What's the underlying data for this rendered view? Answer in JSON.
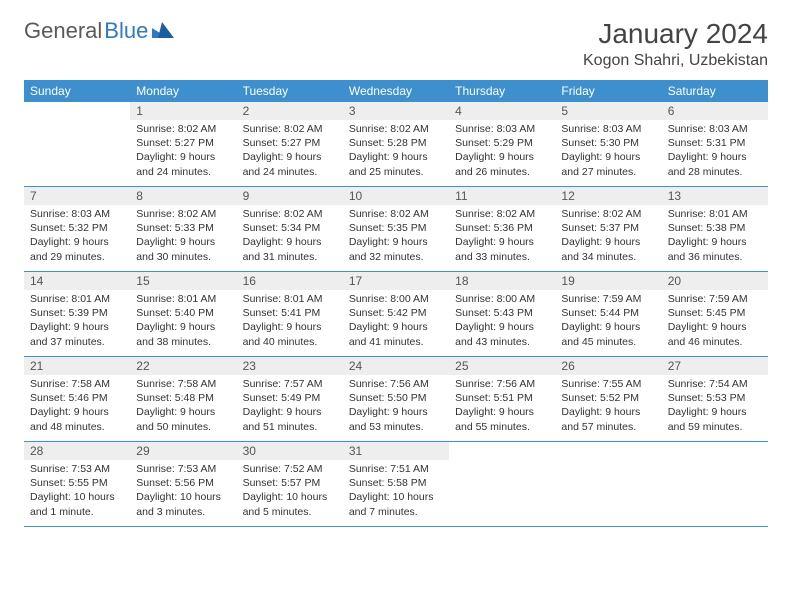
{
  "logo": {
    "text1": "General",
    "text2": "Blue"
  },
  "title": "January 2024",
  "location": "Kogon Shahri, Uzbekistan",
  "header_bg": "#3e8fcd",
  "day_names": [
    "Sunday",
    "Monday",
    "Tuesday",
    "Wednesday",
    "Thursday",
    "Friday",
    "Saturday"
  ],
  "weeks": [
    [
      {
        "n": "",
        "sr": "",
        "ss": "",
        "dl": ""
      },
      {
        "n": "1",
        "sr": "Sunrise: 8:02 AM",
        "ss": "Sunset: 5:27 PM",
        "dl": "Daylight: 9 hours and 24 minutes."
      },
      {
        "n": "2",
        "sr": "Sunrise: 8:02 AM",
        "ss": "Sunset: 5:27 PM",
        "dl": "Daylight: 9 hours and 24 minutes."
      },
      {
        "n": "3",
        "sr": "Sunrise: 8:02 AM",
        "ss": "Sunset: 5:28 PM",
        "dl": "Daylight: 9 hours and 25 minutes."
      },
      {
        "n": "4",
        "sr": "Sunrise: 8:03 AM",
        "ss": "Sunset: 5:29 PM",
        "dl": "Daylight: 9 hours and 26 minutes."
      },
      {
        "n": "5",
        "sr": "Sunrise: 8:03 AM",
        "ss": "Sunset: 5:30 PM",
        "dl": "Daylight: 9 hours and 27 minutes."
      },
      {
        "n": "6",
        "sr": "Sunrise: 8:03 AM",
        "ss": "Sunset: 5:31 PM",
        "dl": "Daylight: 9 hours and 28 minutes."
      }
    ],
    [
      {
        "n": "7",
        "sr": "Sunrise: 8:03 AM",
        "ss": "Sunset: 5:32 PM",
        "dl": "Daylight: 9 hours and 29 minutes."
      },
      {
        "n": "8",
        "sr": "Sunrise: 8:02 AM",
        "ss": "Sunset: 5:33 PM",
        "dl": "Daylight: 9 hours and 30 minutes."
      },
      {
        "n": "9",
        "sr": "Sunrise: 8:02 AM",
        "ss": "Sunset: 5:34 PM",
        "dl": "Daylight: 9 hours and 31 minutes."
      },
      {
        "n": "10",
        "sr": "Sunrise: 8:02 AM",
        "ss": "Sunset: 5:35 PM",
        "dl": "Daylight: 9 hours and 32 minutes."
      },
      {
        "n": "11",
        "sr": "Sunrise: 8:02 AM",
        "ss": "Sunset: 5:36 PM",
        "dl": "Daylight: 9 hours and 33 minutes."
      },
      {
        "n": "12",
        "sr": "Sunrise: 8:02 AM",
        "ss": "Sunset: 5:37 PM",
        "dl": "Daylight: 9 hours and 34 minutes."
      },
      {
        "n": "13",
        "sr": "Sunrise: 8:01 AM",
        "ss": "Sunset: 5:38 PM",
        "dl": "Daylight: 9 hours and 36 minutes."
      }
    ],
    [
      {
        "n": "14",
        "sr": "Sunrise: 8:01 AM",
        "ss": "Sunset: 5:39 PM",
        "dl": "Daylight: 9 hours and 37 minutes."
      },
      {
        "n": "15",
        "sr": "Sunrise: 8:01 AM",
        "ss": "Sunset: 5:40 PM",
        "dl": "Daylight: 9 hours and 38 minutes."
      },
      {
        "n": "16",
        "sr": "Sunrise: 8:01 AM",
        "ss": "Sunset: 5:41 PM",
        "dl": "Daylight: 9 hours and 40 minutes."
      },
      {
        "n": "17",
        "sr": "Sunrise: 8:00 AM",
        "ss": "Sunset: 5:42 PM",
        "dl": "Daylight: 9 hours and 41 minutes."
      },
      {
        "n": "18",
        "sr": "Sunrise: 8:00 AM",
        "ss": "Sunset: 5:43 PM",
        "dl": "Daylight: 9 hours and 43 minutes."
      },
      {
        "n": "19",
        "sr": "Sunrise: 7:59 AM",
        "ss": "Sunset: 5:44 PM",
        "dl": "Daylight: 9 hours and 45 minutes."
      },
      {
        "n": "20",
        "sr": "Sunrise: 7:59 AM",
        "ss": "Sunset: 5:45 PM",
        "dl": "Daylight: 9 hours and 46 minutes."
      }
    ],
    [
      {
        "n": "21",
        "sr": "Sunrise: 7:58 AM",
        "ss": "Sunset: 5:46 PM",
        "dl": "Daylight: 9 hours and 48 minutes."
      },
      {
        "n": "22",
        "sr": "Sunrise: 7:58 AM",
        "ss": "Sunset: 5:48 PM",
        "dl": "Daylight: 9 hours and 50 minutes."
      },
      {
        "n": "23",
        "sr": "Sunrise: 7:57 AM",
        "ss": "Sunset: 5:49 PM",
        "dl": "Daylight: 9 hours and 51 minutes."
      },
      {
        "n": "24",
        "sr": "Sunrise: 7:56 AM",
        "ss": "Sunset: 5:50 PM",
        "dl": "Daylight: 9 hours and 53 minutes."
      },
      {
        "n": "25",
        "sr": "Sunrise: 7:56 AM",
        "ss": "Sunset: 5:51 PM",
        "dl": "Daylight: 9 hours and 55 minutes."
      },
      {
        "n": "26",
        "sr": "Sunrise: 7:55 AM",
        "ss": "Sunset: 5:52 PM",
        "dl": "Daylight: 9 hours and 57 minutes."
      },
      {
        "n": "27",
        "sr": "Sunrise: 7:54 AM",
        "ss": "Sunset: 5:53 PM",
        "dl": "Daylight: 9 hours and 59 minutes."
      }
    ],
    [
      {
        "n": "28",
        "sr": "Sunrise: 7:53 AM",
        "ss": "Sunset: 5:55 PM",
        "dl": "Daylight: 10 hours and 1 minute."
      },
      {
        "n": "29",
        "sr": "Sunrise: 7:53 AM",
        "ss": "Sunset: 5:56 PM",
        "dl": "Daylight: 10 hours and 3 minutes."
      },
      {
        "n": "30",
        "sr": "Sunrise: 7:52 AM",
        "ss": "Sunset: 5:57 PM",
        "dl": "Daylight: 10 hours and 5 minutes."
      },
      {
        "n": "31",
        "sr": "Sunrise: 7:51 AM",
        "ss": "Sunset: 5:58 PM",
        "dl": "Daylight: 10 hours and 7 minutes."
      },
      {
        "n": "",
        "sr": "",
        "ss": "",
        "dl": ""
      },
      {
        "n": "",
        "sr": "",
        "ss": "",
        "dl": ""
      },
      {
        "n": "",
        "sr": "",
        "ss": "",
        "dl": ""
      }
    ]
  ]
}
